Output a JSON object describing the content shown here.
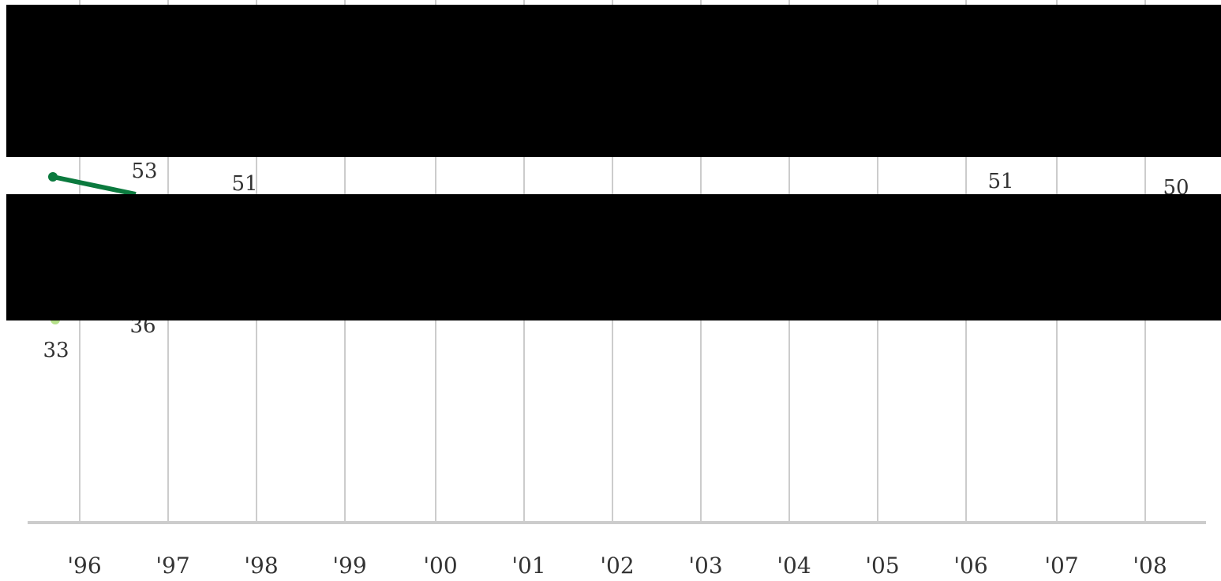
{
  "chart_data": {
    "type": "line",
    "title": "",
    "xlabel": "",
    "ylabel": "",
    "categories": [
      "'96",
      "'97",
      "'98",
      "'99",
      "'00",
      "'01",
      "'02",
      "'03",
      "'04",
      "'05",
      "'06",
      "'07",
      "'08"
    ],
    "grid": "vertical",
    "series": [
      {
        "color": "#0b7a3e",
        "partially_visible_labels": [
          53,
          51,
          51,
          50
        ]
      },
      {
        "color": "#b5e08a",
        "partially_visible_labels": [
          33,
          36
        ]
      }
    ],
    "redacted": true
  },
  "colors": {
    "dark_series": "#0b7a3e",
    "light_series": "#b5e08a",
    "grid": "#cccccc",
    "axis": "#cccccc",
    "redaction": "#000000"
  }
}
